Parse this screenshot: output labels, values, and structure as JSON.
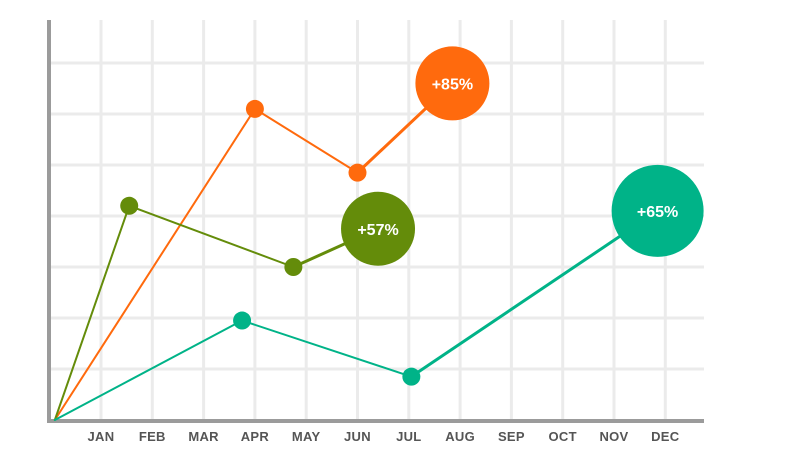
{
  "chart_data": {
    "type": "line",
    "x_categories": [
      "JAN",
      "FEB",
      "MAR",
      "APR",
      "MAY",
      "JUN",
      "JUL",
      "AUG",
      "SEP",
      "OCT",
      "NOV",
      "DEC"
    ],
    "y_range": [
      0,
      8
    ],
    "grid": true,
    "colors": {
      "orange": "#ff6a0d",
      "olive": "#648c0a",
      "teal": "#00b388",
      "grid": "#ebebeb",
      "axis": "#9b9b9b",
      "labels": "#555555"
    },
    "series": [
      {
        "color_key": "orange",
        "points": [
          {
            "x": -0.9,
            "y": 0.0
          },
          {
            "x": 3.0,
            "y": 6.1
          },
          {
            "x": 5.0,
            "y": 4.85
          },
          {
            "x": 6.85,
            "y": 6.6
          }
        ],
        "end_label": "+85%"
      },
      {
        "color_key": "olive",
        "points": [
          {
            "x": -0.9,
            "y": 0.0
          },
          {
            "x": 0.55,
            "y": 4.2
          },
          {
            "x": 3.75,
            "y": 3.0
          },
          {
            "x": 5.4,
            "y": 3.75
          }
        ],
        "end_label": "+57%"
      },
      {
        "color_key": "teal",
        "points": [
          {
            "x": -0.9,
            "y": 0.0
          },
          {
            "x": 2.75,
            "y": 1.95
          },
          {
            "x": 6.05,
            "y": 0.85
          },
          {
            "x": 10.85,
            "y": 4.1
          }
        ],
        "end_label": "+65%"
      }
    ]
  }
}
